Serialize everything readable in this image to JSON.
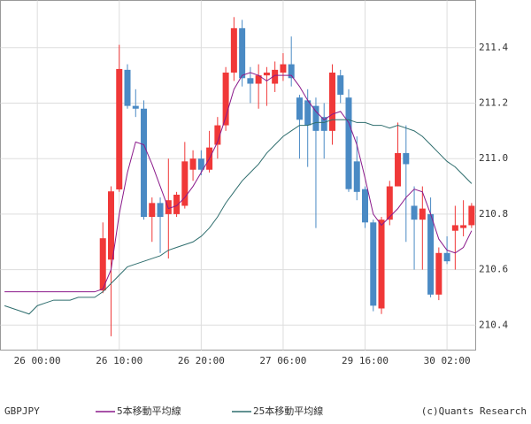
{
  "chart_data": {
    "type": "candlestick",
    "categories": [
      null,
      null,
      null,
      null,
      "26 00:00",
      null,
      null,
      null,
      null,
      null,
      null,
      null,
      null,
      null,
      "26 10:00",
      null,
      null,
      null,
      null,
      null,
      null,
      null,
      null,
      null,
      "26 20:00",
      null,
      null,
      null,
      null,
      null,
      null,
      null,
      null,
      null,
      "27 06:00",
      null,
      null,
      null,
      null,
      null,
      null,
      null,
      null,
      null,
      "29 16:00",
      null,
      null,
      null,
      null,
      null,
      null,
      null,
      null,
      null,
      "30 02:00",
      null,
      null,
      null
    ],
    "symbol": "GBPJPY",
    "open": [
      null,
      null,
      null,
      null,
      null,
      null,
      null,
      null,
      null,
      null,
      null,
      null,
      210.525,
      210.636,
      210.889,
      211.32,
      211.19,
      211.18,
      210.79,
      210.84,
      210.8,
      210.8,
      210.83,
      210.96,
      211.0,
      210.96,
      211.05,
      211.12,
      211.31,
      211.47,
      211.29,
      211.27,
      211.3,
      211.27,
      211.31,
      211.34,
      211.22,
      211.21,
      211.19,
      211.15,
      211.1,
      211.3,
      211.22,
      210.99,
      210.89,
      210.77,
      210.46,
      210.78,
      210.9,
      211.02,
      210.83,
      210.78,
      210.8,
      210.51,
      210.66,
      210.74,
      210.75,
      210.76
    ],
    "high": [
      null,
      null,
      null,
      null,
      null,
      null,
      null,
      null,
      null,
      null,
      null,
      null,
      210.77,
      210.9,
      211.41,
      211.34,
      211.25,
      211.21,
      210.86,
      210.86,
      211.0,
      210.88,
      211.06,
      211.03,
      211.03,
      211.1,
      211.15,
      211.33,
      211.51,
      211.5,
      211.33,
      211.34,
      211.33,
      211.35,
      211.38,
      211.44,
      211.23,
      211.25,
      211.22,
      211.2,
      211.34,
      211.32,
      211.25,
      211.08,
      210.9,
      210.78,
      210.79,
      210.92,
      211.13,
      211.12,
      210.9,
      210.9,
      210.86,
      210.68,
      210.72,
      210.83,
      210.85,
      210.84
    ],
    "low": [
      null,
      null,
      null,
      null,
      null,
      null,
      null,
      null,
      null,
      null,
      null,
      null,
      210.515,
      210.36,
      210.88,
      211.18,
      211.15,
      210.78,
      210.7,
      210.66,
      210.64,
      210.79,
      210.82,
      210.92,
      210.94,
      210.95,
      211.0,
      211.1,
      211.28,
      211.26,
      211.2,
      211.18,
      211.19,
      211.24,
      211.28,
      211.26,
      211.0,
      210.97,
      210.75,
      211.0,
      211.05,
      211.2,
      210.88,
      210.85,
      210.75,
      210.45,
      210.44,
      210.76,
      210.9,
      210.7,
      210.6,
      210.6,
      210.5,
      210.49,
      210.62,
      210.6,
      210.72,
      210.75
    ],
    "close": [
      null,
      null,
      null,
      null,
      null,
      null,
      null,
      null,
      null,
      null,
      null,
      null,
      210.713,
      210.882,
      211.323,
      211.19,
      211.18,
      210.79,
      210.84,
      210.79,
      210.85,
      210.87,
      210.99,
      211.0,
      210.96,
      211.04,
      211.12,
      211.31,
      211.47,
      211.29,
      211.27,
      211.3,
      211.31,
      211.32,
      211.34,
      211.29,
      211.14,
      211.12,
      211.1,
      211.1,
      211.31,
      211.23,
      210.89,
      210.88,
      210.77,
      210.47,
      210.78,
      210.9,
      211.02,
      210.98,
      210.78,
      210.82,
      210.51,
      210.66,
      210.63,
      210.76,
      210.76,
      210.83
    ],
    "up_color": "#f03838",
    "down_color": "#4a8ac4",
    "series": [
      {
        "name": "5本移動平均線",
        "color": "#8b1a8b",
        "values": [
          210.52,
          210.52,
          210.52,
          210.52,
          210.52,
          210.52,
          210.52,
          210.52,
          210.52,
          210.52,
          210.52,
          210.52,
          210.53,
          210.6,
          210.8,
          210.95,
          211.06,
          211.05,
          210.98,
          210.9,
          210.82,
          210.83,
          210.86,
          210.9,
          210.95,
          211.0,
          211.06,
          211.15,
          211.25,
          211.3,
          211.31,
          211.3,
          211.28,
          211.3,
          211.3,
          211.3,
          211.26,
          211.21,
          211.17,
          211.14,
          211.16,
          211.17,
          211.13,
          211.05,
          210.93,
          210.8,
          210.76,
          210.79,
          210.82,
          210.86,
          210.89,
          210.88,
          210.8,
          210.71,
          210.67,
          210.66,
          210.68,
          210.74
        ]
      },
      {
        "name": "25本移動平均線",
        "color": "#2f6e6e",
        "values": [
          210.47,
          210.46,
          210.45,
          210.44,
          210.47,
          210.48,
          210.49,
          210.49,
          210.49,
          210.5,
          210.5,
          210.5,
          210.52,
          210.55,
          210.58,
          210.61,
          210.62,
          210.63,
          210.64,
          210.65,
          210.67,
          210.68,
          210.69,
          210.7,
          210.72,
          210.75,
          210.79,
          210.84,
          210.88,
          210.92,
          210.95,
          210.98,
          211.02,
          211.05,
          211.08,
          211.1,
          211.12,
          211.12,
          211.13,
          211.13,
          211.14,
          211.14,
          211.14,
          211.13,
          211.13,
          211.12,
          211.12,
          211.11,
          211.12,
          211.11,
          211.1,
          211.08,
          211.05,
          211.02,
          210.99,
          210.97,
          210.94,
          210.91
        ]
      }
    ],
    "ylim": [
      210.31,
      211.57
    ],
    "yticks": [
      210.4,
      210.6,
      210.8,
      {
        "value": 211,
        "label": "211.0"
      },
      211.2,
      211.4
    ],
    "grid": true,
    "credit": "(c)Quants Research"
  }
}
